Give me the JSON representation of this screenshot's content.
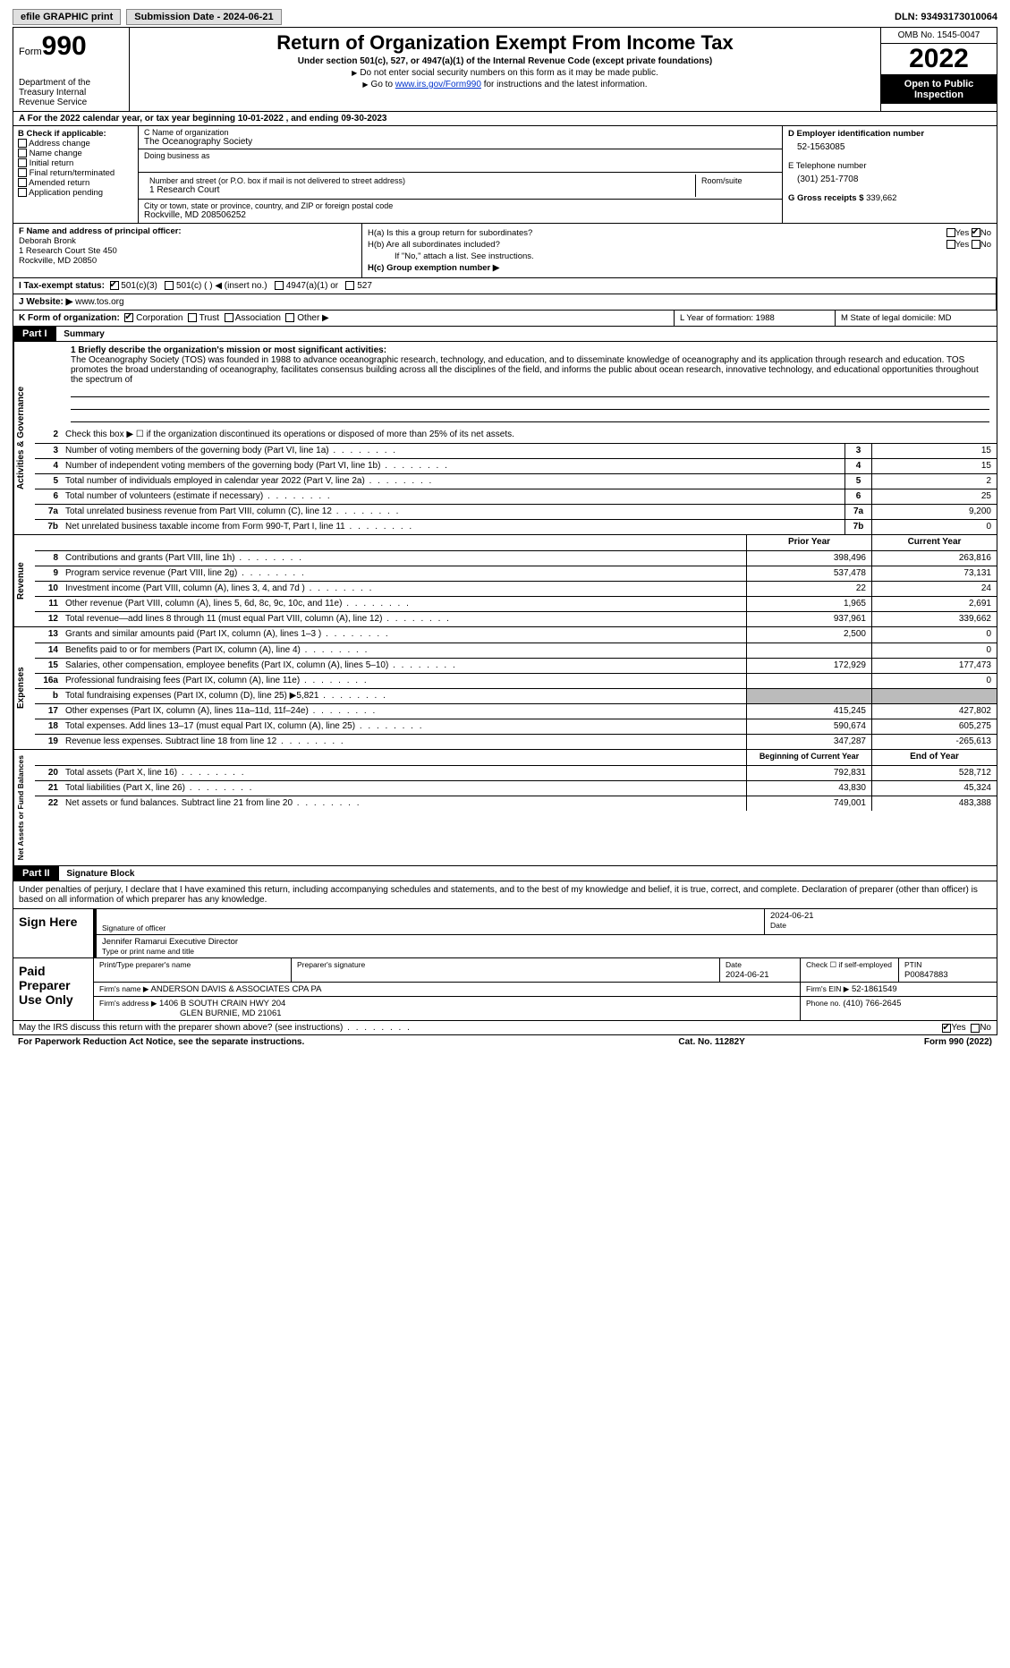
{
  "topbar": {
    "efile": "efile GRAPHIC print",
    "submission": "Submission Date - 2024-06-21",
    "dln": "DLN: 93493173010064"
  },
  "header": {
    "form": "Form",
    "form_no": "990",
    "dept": "Department of the Treasury\nInternal Revenue Service",
    "title": "Return of Organization Exempt From Income Tax",
    "sub": "Under section 501(c), 527, or 4947(a)(1) of the Internal Revenue Code (except private foundations)",
    "note1": "Do not enter social security numbers on this form as it may be made public.",
    "note2_pre": "Go to ",
    "note2_link": "www.irs.gov/Form990",
    "note2_post": " for instructions and the latest information.",
    "omb": "OMB No. 1545-0047",
    "year": "2022",
    "public": "Open to Public Inspection"
  },
  "row_a": "A For the 2022 calendar year, or tax year beginning 10-01-2022   , and ending 09-30-2023",
  "col_b": {
    "title": "B Check if applicable:",
    "items": [
      "Address change",
      "Name change",
      "Initial return",
      "Final return/terminated",
      "Amended return",
      "Application pending"
    ]
  },
  "col_c": {
    "name_lbl": "C Name of organization",
    "name": "The Oceanography Society",
    "dba_lbl": "Doing business as",
    "addr_lbl": "Number and street (or P.O. box if mail is not delivered to street address)",
    "addr": "1 Research Court",
    "room_lbl": "Room/suite",
    "city_lbl": "City or town, state or province, country, and ZIP or foreign postal code",
    "city": "Rockville, MD  208506252"
  },
  "col_d": {
    "ein_lbl": "D Employer identification number",
    "ein": "52-1563085",
    "phone_lbl": "E Telephone number",
    "phone": "(301) 251-7708",
    "gross_lbl": "G Gross receipts $",
    "gross": "339,662"
  },
  "fh": {
    "f_lbl": "F Name and address of principal officer:",
    "f_name": "Deborah Bronk",
    "f_addr1": "1 Research Court Ste 450",
    "f_addr2": "Rockville, MD  20850",
    "ha": "H(a)  Is this a group return for subordinates?",
    "hb": "H(b)  Are all subordinates included?",
    "hnote": "If \"No,\" attach a list. See instructions.",
    "hc": "H(c)  Group exemption number ▶",
    "yes": "Yes",
    "no": "No"
  },
  "row_i": {
    "label": "I   Tax-exempt status:",
    "o1": "501(c)(3)",
    "o2": "501(c) (  ) ◀ (insert no.)",
    "o3": "4947(a)(1) or",
    "o4": "527"
  },
  "row_j": {
    "label": "J   Website: ▶",
    "val": "www.tos.org"
  },
  "row_k": {
    "label": "K Form of organization:",
    "o1": "Corporation",
    "o2": "Trust",
    "o3": "Association",
    "o4": "Other ▶",
    "l": "L Year of formation: 1988",
    "m": "M State of legal domicile: MD"
  },
  "part1": {
    "hdr": "Part I",
    "title": "Summary"
  },
  "mission": {
    "lbl": "1  Briefly describe the organization's mission or most significant activities:",
    "text": "The Oceanography Society (TOS) was founded in 1988 to advance oceanographic research, technology, and education, and to disseminate knowledge of oceanography and its application through research and education. TOS promotes the broad understanding of oceanography, facilitates consensus building across all the disciplines of the field, and informs the public about ocean research, innovative technology, and educational opportunities throughout the spectrum of"
  },
  "gov_lines": [
    {
      "no": "2",
      "desc": "Check this box ▶ ☐  if the organization discontinued its operations or disposed of more than 25% of its net assets."
    },
    {
      "no": "3",
      "desc": "Number of voting members of the governing body (Part VI, line 1a)",
      "k": "3",
      "v": "15"
    },
    {
      "no": "4",
      "desc": "Number of independent voting members of the governing body (Part VI, line 1b)",
      "k": "4",
      "v": "15"
    },
    {
      "no": "5",
      "desc": "Total number of individuals employed in calendar year 2022 (Part V, line 2a)",
      "k": "5",
      "v": "2"
    },
    {
      "no": "6",
      "desc": "Total number of volunteers (estimate if necessary)",
      "k": "6",
      "v": "25"
    },
    {
      "no": "7a",
      "desc": "Total unrelated business revenue from Part VIII, column (C), line 12",
      "k": "7a",
      "v": "9,200"
    },
    {
      "no": "7b",
      "desc": "Net unrelated business taxable income from Form 990-T, Part I, line 11",
      "k": "7b",
      "v": "0"
    }
  ],
  "rev_hdr": {
    "prior": "Prior Year",
    "cur": "Current Year"
  },
  "rev_lines": [
    {
      "no": "8",
      "desc": "Contributions and grants (Part VIII, line 1h)",
      "p": "398,496",
      "c": "263,816"
    },
    {
      "no": "9",
      "desc": "Program service revenue (Part VIII, line 2g)",
      "p": "537,478",
      "c": "73,131"
    },
    {
      "no": "10",
      "desc": "Investment income (Part VIII, column (A), lines 3, 4, and 7d )",
      "p": "22",
      "c": "24"
    },
    {
      "no": "11",
      "desc": "Other revenue (Part VIII, column (A), lines 5, 6d, 8c, 9c, 10c, and 11e)",
      "p": "1,965",
      "c": "2,691"
    },
    {
      "no": "12",
      "desc": "Total revenue—add lines 8 through 11 (must equal Part VIII, column (A), line 12)",
      "p": "937,961",
      "c": "339,662"
    }
  ],
  "exp_lines": [
    {
      "no": "13",
      "desc": "Grants and similar amounts paid (Part IX, column (A), lines 1–3 )",
      "p": "2,500",
      "c": "0"
    },
    {
      "no": "14",
      "desc": "Benefits paid to or for members (Part IX, column (A), line 4)",
      "p": "",
      "c": "0"
    },
    {
      "no": "15",
      "desc": "Salaries, other compensation, employee benefits (Part IX, column (A), lines 5–10)",
      "p": "172,929",
      "c": "177,473"
    },
    {
      "no": "16a",
      "desc": "Professional fundraising fees (Part IX, column (A), line 11e)",
      "p": "",
      "c": "0"
    },
    {
      "no": "b",
      "desc": "Total fundraising expenses (Part IX, column (D), line 25) ▶5,821",
      "p": "grey",
      "c": "grey"
    },
    {
      "no": "17",
      "desc": "Other expenses (Part IX, column (A), lines 11a–11d, 11f–24e)",
      "p": "415,245",
      "c": "427,802"
    },
    {
      "no": "18",
      "desc": "Total expenses. Add lines 13–17 (must equal Part IX, column (A), line 25)",
      "p": "590,674",
      "c": "605,275"
    },
    {
      "no": "19",
      "desc": "Revenue less expenses. Subtract line 18 from line 12",
      "p": "347,287",
      "c": "-265,613"
    }
  ],
  "na_hdr": {
    "prior": "Beginning of Current Year",
    "cur": "End of Year"
  },
  "na_lines": [
    {
      "no": "20",
      "desc": "Total assets (Part X, line 16)",
      "p": "792,831",
      "c": "528,712"
    },
    {
      "no": "21",
      "desc": "Total liabilities (Part X, line 26)",
      "p": "43,830",
      "c": "45,324"
    },
    {
      "no": "22",
      "desc": "Net assets or fund balances. Subtract line 21 from line 20",
      "p": "749,001",
      "c": "483,388"
    }
  ],
  "vtabs": {
    "gov": "Activities & Governance",
    "rev": "Revenue",
    "exp": "Expenses",
    "na": "Net Assets or\nFund Balances"
  },
  "part2": {
    "hdr": "Part II",
    "title": "Signature Block"
  },
  "sig": {
    "decl": "Under penalties of perjury, I declare that I have examined this return, including accompanying schedules and statements, and to the best of my knowledge and belief, it is true, correct, and complete. Declaration of preparer (other than officer) is based on all information of which preparer has any knowledge.",
    "sign_here": "Sign Here",
    "sig_of": "Signature of officer",
    "date": "Date",
    "date_val": "2024-06-21",
    "name": "Jennifer Ramarui  Executive Director",
    "name_lbl": "Type or print name and title",
    "paid": "Paid Preparer Use Only",
    "p_name_lbl": "Print/Type preparer's name",
    "p_sig_lbl": "Preparer's signature",
    "p_date_lbl": "Date",
    "p_date": "2024-06-21",
    "p_check": "Check ☐ if self-employed",
    "ptin_lbl": "PTIN",
    "ptin": "P00847883",
    "firm_name_lbl": "Firm's name    ▶",
    "firm_name": "ANDERSON DAVIS & ASSOCIATES CPA PA",
    "firm_ein_lbl": "Firm's EIN ▶",
    "firm_ein": "52-1861549",
    "firm_addr_lbl": "Firm's address ▶",
    "firm_addr": "1406 B SOUTH CRAIN HWY 204",
    "firm_city": "GLEN BURNIE, MD  21061",
    "firm_phone_lbl": "Phone no.",
    "firm_phone": "(410) 766-2645"
  },
  "footer": {
    "q": "May the IRS discuss this return with the preparer shown above? (see instructions)",
    "yes": "Yes",
    "no": "No",
    "pra": "For Paperwork Reduction Act Notice, see the separate instructions.",
    "cat": "Cat. No. 11282Y",
    "form": "Form 990 (2022)"
  }
}
